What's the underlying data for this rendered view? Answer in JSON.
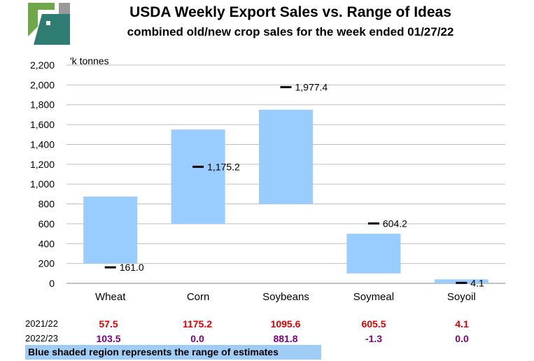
{
  "logo": {
    "name": "usda-logo",
    "colors": [
      "#6fa84a",
      "#9a9a9a",
      "#2e7c72"
    ]
  },
  "chart_data": {
    "type": "floating-bar",
    "title": "USDA Weekly Export Sales vs. Range of Ideas",
    "subtitle": "combined old/new crop sales for the week ended 01/27/22",
    "ylabel": "'k tonnes",
    "ylim": [
      0,
      2200
    ],
    "yticks": [
      0,
      200,
      400,
      600,
      800,
      1000,
      1200,
      1400,
      1600,
      1800,
      2000,
      2200
    ],
    "ytick_labels": [
      "0",
      "200",
      "400",
      "600",
      "800",
      "1,000",
      "1,200",
      "1,400",
      "1,600",
      "1,800",
      "2,000",
      "2,200"
    ],
    "grid": true,
    "categories": [
      "Wheat",
      "Corn",
      "Soybeans",
      "Soymeal",
      "Soyoil"
    ],
    "range_low": [
      200,
      600,
      800,
      100,
      0
    ],
    "range_high": [
      875,
      1550,
      1750,
      500,
      40
    ],
    "actual": [
      161.0,
      1175.2,
      1977.4,
      604.2,
      4.1
    ],
    "actual_labels": [
      "161.0",
      "1,175.2",
      "1,977.4",
      "604.2",
      "4.1"
    ],
    "bar_color": "#99ccff",
    "marker_color": "#000000"
  },
  "table": {
    "rows": [
      {
        "label": "2021/22",
        "values": [
          "57.5",
          "1175.2",
          "1095.6",
          "605.5",
          "4.1"
        ],
        "color": "#e00000"
      },
      {
        "label": "2022/23",
        "values": [
          "103.5",
          "0.0",
          "881.8",
          "-1.3",
          "0.0"
        ],
        "color": "#800080"
      }
    ]
  },
  "footnote": "Blue shaded region represents the range of estimates"
}
